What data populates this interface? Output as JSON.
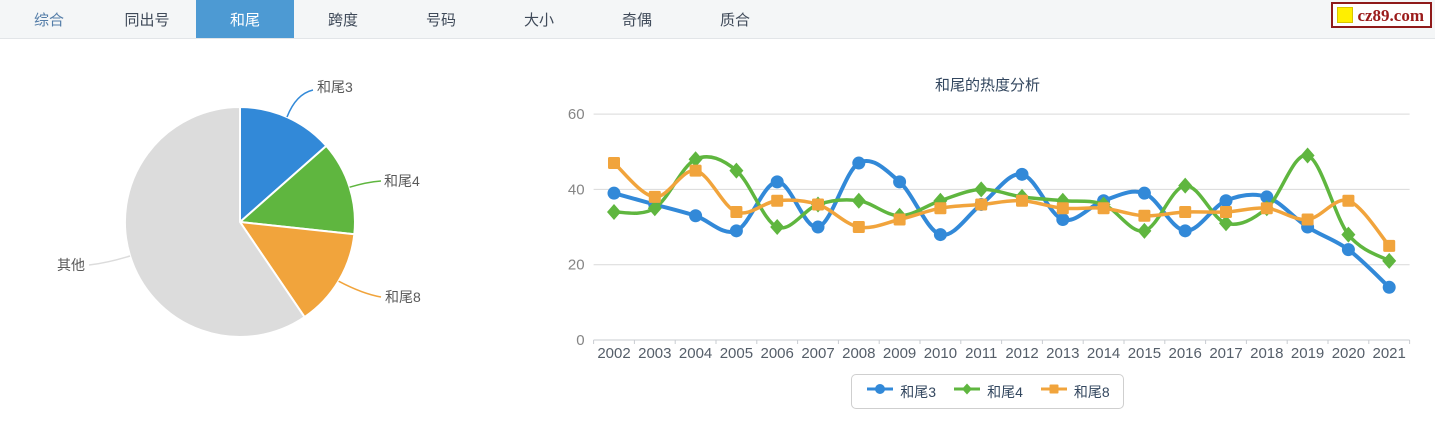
{
  "nav": {
    "tabs": [
      "综合",
      "同出号",
      "和尾",
      "跨度",
      "号码",
      "大小",
      "奇偶",
      "质合"
    ],
    "active_index": 2
  },
  "logo": {
    "text": "cz89.com",
    "accent_color": "#9b1b1b",
    "square_color": "#ffef00"
  },
  "colors": {
    "blue": "#3289d8",
    "green": "#5fb63f",
    "orange": "#f1a43c",
    "gray": "#dcdcdc",
    "text_dark": "#33475f"
  },
  "chart_data": [
    {
      "type": "pie",
      "slices": [
        {
          "label": "和尾3",
          "value": 13.5,
          "color": "#3289d8"
        },
        {
          "label": "和尾4",
          "value": 13.2,
          "color": "#5fb63f"
        },
        {
          "label": "和尾8",
          "value": 13.8,
          "color": "#f1a43c"
        },
        {
          "label": "其他",
          "value": 59.5,
          "color": "#dcdcdc"
        }
      ]
    },
    {
      "type": "line",
      "title": "和尾的热度分析",
      "x": [
        "2002",
        "2003",
        "2004",
        "2005",
        "2006",
        "2007",
        "2008",
        "2009",
        "2010",
        "2011",
        "2012",
        "2013",
        "2014",
        "2015",
        "2016",
        "2017",
        "2018",
        "2019",
        "2020",
        "2021"
      ],
      "series": [
        {
          "name": "和尾3",
          "color": "#3289d8",
          "symbol": "circle",
          "values": [
            39,
            36,
            33,
            29,
            42,
            30,
            47,
            42,
            28,
            36,
            44,
            32,
            37,
            39,
            29,
            37,
            38,
            30,
            24,
            14
          ]
        },
        {
          "name": "和尾4",
          "color": "#5fb63f",
          "symbol": "diamond",
          "values": [
            34,
            35,
            48,
            45,
            30,
            36,
            37,
            33,
            37,
            40,
            38,
            37,
            36,
            29,
            41,
            31,
            35,
            49,
            28,
            21
          ]
        },
        {
          "name": "和尾8",
          "color": "#f1a43c",
          "symbol": "square",
          "values": [
            47,
            38,
            45,
            34,
            37,
            36,
            30,
            32,
            35,
            36,
            37,
            35,
            35,
            33,
            34,
            34,
            35,
            32,
            37,
            25
          ]
        }
      ],
      "ylim": [
        0,
        60
      ],
      "yticks": [
        0,
        20,
        40,
        60
      ],
      "grid": true,
      "legend_position": "bottom"
    }
  ]
}
